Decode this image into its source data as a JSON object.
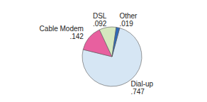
{
  "chart_data": {
    "type": "pie",
    "categories": [
      "Dial-up",
      "Cable Modem",
      "DSL",
      "Other"
    ],
    "values": [
      0.747,
      0.142,
      0.092,
      0.019
    ],
    "value_labels": [
      ".747",
      ".142",
      ".092",
      ".019"
    ],
    "colors": [
      "#d6e6f4",
      "#e8609f",
      "#d5e8bf",
      "#2f6ab8"
    ],
    "data_labels": true
  }
}
